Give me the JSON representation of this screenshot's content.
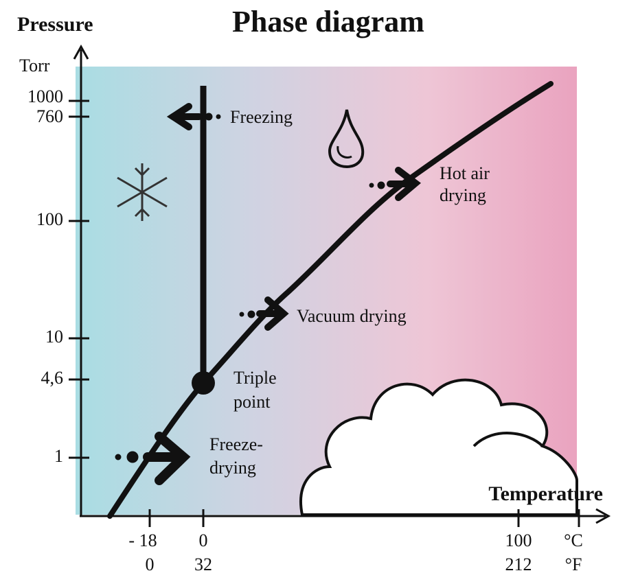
{
  "header": {
    "y_axis_title": "Pressure",
    "title": "Phase diagram",
    "y_unit": "Torr"
  },
  "y_labels": [
    "1000",
    "760",
    "100",
    "10",
    "4,6",
    "1"
  ],
  "x_axis_title": "Temperature",
  "x_labels_celsius": [
    "- 18",
    "0",
    "100",
    "°C"
  ],
  "x_labels_fahrenheit": [
    "0",
    "32",
    "212",
    "°F"
  ],
  "annotations": {
    "freezing": "Freezing",
    "hot_air_drying": [
      "Hot air",
      "drying"
    ],
    "vacuum_drying": "Vacuum drying",
    "triple_point": [
      "Triple",
      "point"
    ],
    "freeze_drying": [
      "Freeze-",
      "drying"
    ]
  }
}
